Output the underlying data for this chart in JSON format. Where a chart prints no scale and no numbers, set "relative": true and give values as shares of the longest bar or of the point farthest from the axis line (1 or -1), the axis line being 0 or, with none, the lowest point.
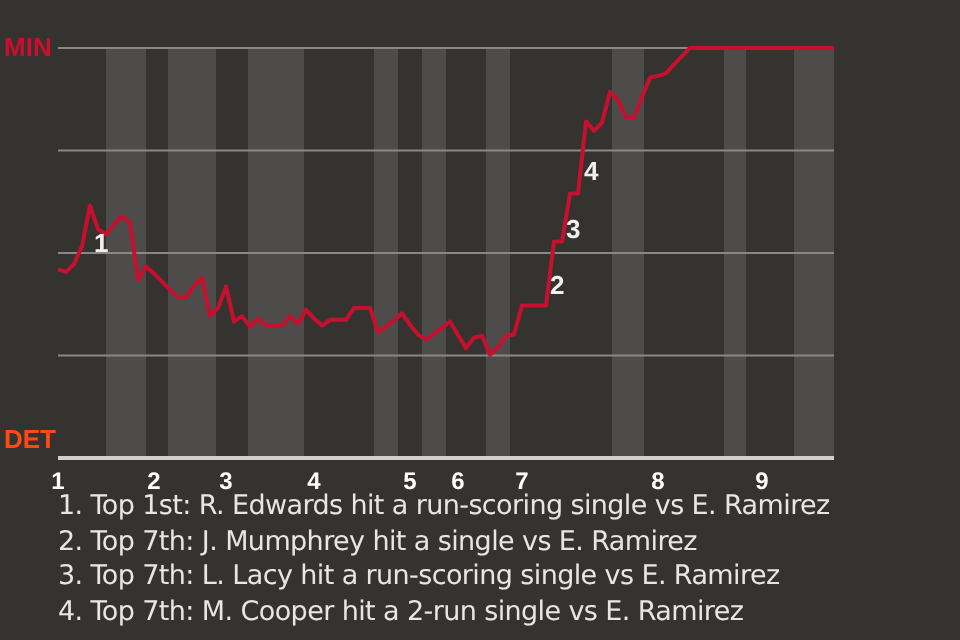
{
  "chart_data": {
    "type": "line",
    "relative": true,
    "categories": [
      "1",
      null,
      null,
      null,
      null,
      null,
      null,
      null,
      null,
      null,
      null,
      null,
      "2",
      null,
      null,
      null,
      null,
      null,
      null,
      null,
      null,
      "3",
      null,
      null,
      null,
      null,
      null,
      null,
      null,
      null,
      null,
      null,
      "4",
      null,
      null,
      null,
      null,
      null,
      null,
      null,
      null,
      null,
      null,
      null,
      "5",
      null,
      null,
      null,
      null,
      null,
      "6",
      null,
      null,
      null,
      null,
      null,
      null,
      null,
      "7",
      null,
      null,
      null,
      null,
      null,
      null,
      null,
      null,
      null,
      null,
      null,
      null,
      null,
      null,
      null,
      null,
      "8",
      null,
      null,
      null,
      null,
      null,
      null,
      null,
      null,
      null,
      null,
      null,
      null,
      "9",
      null,
      null,
      null,
      null,
      null,
      null,
      null,
      null,
      null
    ],
    "series": [
      {
        "color": "#c8102e",
        "values": [
          0.46,
          0.454,
          0.473,
          0.516,
          0.616,
          0.558,
          0.545,
          0.57,
          0.59,
          0.574,
          0.434,
          0.467,
          0.45,
          0.43,
          0.41,
          0.392,
          0.392,
          0.42,
          0.44,
          0.346,
          0.366,
          0.418,
          0.333,
          0.346,
          0.32,
          0.34,
          0.323,
          0.323,
          0.323,
          0.346,
          0.327,
          0.362,
          0.34,
          0.323,
          0.337,
          0.337,
          0.337,
          0.366,
          0.366,
          0.366,
          0.307,
          0.32,
          0.335,
          0.353,
          0.325,
          0.301,
          0.288,
          0.303,
          0.318,
          0.333,
          0.3,
          0.268,
          0.294,
          0.298,
          0.252,
          0.27,
          0.298,
          0.301,
          0.372,
          0.372,
          0.372,
          0.372,
          0.528,
          0.528,
          0.645,
          0.645,
          0.821,
          0.798,
          0.818,
          0.893,
          0.873,
          0.831,
          0.831,
          0.88,
          0.928,
          0.932,
          0.938,
          0.96,
          0.98,
          1,
          1,
          1,
          1,
          1,
          1,
          1,
          1,
          1,
          1,
          1,
          1,
          1,
          1,
          1,
          1,
          1,
          1,
          1
        ]
      }
    ],
    "grid": "y",
    "annotations": [
      "MIN",
      "DET",
      "1",
      "2",
      "3",
      "4",
      "1. Top 1st: R. Edwards hit a run-scoring single vs E. Ramirez",
      "2. Top 7th: J. Mumphrey hit a single vs E. Ramirez",
      "3. Top 7th: L. Lacy hit a run-scoring single vs E. Ramirez",
      "4. Top 7th: M. Cooper hit a 2-run single vs E. Ramirez"
    ]
  }
}
